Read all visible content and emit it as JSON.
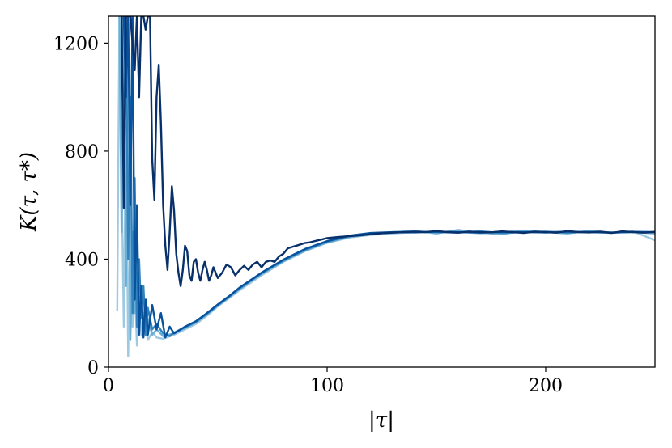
{
  "chart_data": {
    "type": "line",
    "title": "",
    "xlabel": "|τ|",
    "ylabel": "K(τ, τ*)",
    "xlim": [
      0,
      250
    ],
    "ylim": [
      0,
      1300
    ],
    "xticks": [
      0,
      100,
      200
    ],
    "yticks": [
      0,
      400,
      800,
      1200
    ],
    "grid": false,
    "legend": "none",
    "series": [
      {
        "color": "#9ecae1",
        "points": [
          [
            4,
            210
          ],
          [
            5,
            1300
          ],
          [
            6,
            700
          ],
          [
            7,
            150
          ],
          [
            8,
            900
          ],
          [
            9,
            40
          ],
          [
            10,
            600
          ],
          [
            11,
            150
          ],
          [
            12,
            320
          ],
          [
            13,
            80
          ],
          [
            14,
            260
          ],
          [
            15,
            120
          ],
          [
            16,
            200
          ],
          [
            18,
            100
          ],
          [
            20,
            130
          ],
          [
            22,
            110
          ],
          [
            25,
            105
          ],
          [
            30,
            120
          ],
          [
            35,
            140
          ],
          [
            40,
            160
          ],
          [
            45,
            190
          ],
          [
            50,
            225
          ],
          [
            55,
            255
          ],
          [
            60,
            285
          ],
          [
            70,
            340
          ],
          [
            80,
            390
          ],
          [
            90,
            430
          ],
          [
            100,
            460
          ],
          [
            110,
            480
          ],
          [
            120,
            490
          ],
          [
            130,
            495
          ],
          [
            140,
            500
          ],
          [
            150,
            498
          ],
          [
            160,
            502
          ],
          [
            170,
            495
          ],
          [
            180,
            500
          ],
          [
            190,
            505
          ],
          [
            200,
            498
          ],
          [
            210,
            502
          ],
          [
            220,
            500
          ],
          [
            230,
            497
          ],
          [
            240,
            503
          ],
          [
            250,
            470
          ]
        ]
      },
      {
        "color": "#6baed6",
        "points": [
          [
            5,
            1300
          ],
          [
            6,
            500
          ],
          [
            7,
            1300
          ],
          [
            8,
            300
          ],
          [
            9,
            1100
          ],
          [
            10,
            100
          ],
          [
            11,
            500
          ],
          [
            12,
            200
          ],
          [
            13,
            350
          ],
          [
            14,
            150
          ],
          [
            15,
            250
          ],
          [
            16,
            130
          ],
          [
            18,
            180
          ],
          [
            20,
            120
          ],
          [
            22,
            140
          ],
          [
            25,
            115
          ],
          [
            30,
            125
          ],
          [
            35,
            145
          ],
          [
            40,
            165
          ],
          [
            45,
            195
          ],
          [
            50,
            228
          ],
          [
            55,
            258
          ],
          [
            60,
            290
          ],
          [
            70,
            345
          ],
          [
            80,
            392
          ],
          [
            90,
            432
          ],
          [
            100,
            462
          ],
          [
            110,
            482
          ],
          [
            120,
            492
          ],
          [
            130,
            500
          ],
          [
            140,
            505
          ],
          [
            150,
            495
          ],
          [
            160,
            508
          ],
          [
            170,
            498
          ],
          [
            180,
            492
          ],
          [
            190,
            506
          ],
          [
            200,
            500
          ],
          [
            210,
            495
          ],
          [
            220,
            505
          ],
          [
            230,
            498
          ],
          [
            240,
            500
          ],
          [
            250,
            495
          ]
        ]
      },
      {
        "color": "#3182bd",
        "points": [
          [
            6,
            1300
          ],
          [
            7,
            800
          ],
          [
            8,
            1300
          ],
          [
            9,
            400
          ],
          [
            10,
            1000
          ],
          [
            11,
            200
          ],
          [
            12,
            700
          ],
          [
            13,
            150
          ],
          [
            14,
            400
          ],
          [
            15,
            180
          ],
          [
            16,
            300
          ],
          [
            17,
            120
          ],
          [
            18,
            220
          ],
          [
            20,
            140
          ],
          [
            22,
            160
          ],
          [
            25,
            125
          ],
          [
            28,
            115
          ],
          [
            30,
            128
          ],
          [
            35,
            148
          ],
          [
            40,
            168
          ],
          [
            45,
            198
          ],
          [
            50,
            230
          ],
          [
            55,
            260
          ],
          [
            60,
            292
          ],
          [
            70,
            348
          ],
          [
            80,
            395
          ],
          [
            90,
            435
          ],
          [
            100,
            465
          ],
          [
            110,
            485
          ],
          [
            120,
            495
          ],
          [
            130,
            498
          ],
          [
            140,
            502
          ],
          [
            150,
            500
          ],
          [
            160,
            498
          ],
          [
            170,
            503
          ],
          [
            180,
            497
          ],
          [
            190,
            500
          ],
          [
            200,
            502
          ],
          [
            210,
            498
          ],
          [
            220,
            501
          ],
          [
            230,
            499
          ],
          [
            240,
            500
          ],
          [
            250,
            500
          ]
        ]
      },
      {
        "color": "#08519c",
        "points": [
          [
            7,
            1300
          ],
          [
            8,
            1000
          ],
          [
            9,
            1300
          ],
          [
            10,
            600
          ],
          [
            11,
            1300
          ],
          [
            12,
            250
          ],
          [
            13,
            600
          ],
          [
            14,
            120
          ],
          [
            15,
            300
          ],
          [
            16,
            110
          ],
          [
            17,
            250
          ],
          [
            18,
            120
          ],
          [
            20,
            230
          ],
          [
            22,
            140
          ],
          [
            24,
            200
          ],
          [
            26,
            110
          ],
          [
            28,
            150
          ],
          [
            30,
            125
          ],
          [
            35,
            150
          ],
          [
            40,
            170
          ],
          [
            45,
            200
          ],
          [
            50,
            232
          ],
          [
            55,
            262
          ],
          [
            60,
            295
          ],
          [
            70,
            350
          ],
          [
            80,
            398
          ],
          [
            90,
            438
          ],
          [
            100,
            467
          ],
          [
            110,
            487
          ],
          [
            120,
            497
          ],
          [
            130,
            500
          ],
          [
            140,
            499
          ],
          [
            150,
            502
          ],
          [
            160,
            500
          ],
          [
            170,
            498
          ],
          [
            180,
            501
          ],
          [
            190,
            500
          ],
          [
            200,
            499
          ],
          [
            210,
            502
          ],
          [
            220,
            500
          ],
          [
            230,
            498
          ],
          [
            240,
            501
          ],
          [
            250,
            500
          ]
        ]
      },
      {
        "color": "#08306b",
        "points": [
          [
            6,
            1300
          ],
          [
            7,
            590
          ],
          [
            8,
            1300
          ],
          [
            10,
            1300
          ],
          [
            12,
            1100
          ],
          [
            13,
            1300
          ],
          [
            14,
            1000
          ],
          [
            15,
            1300
          ],
          [
            16,
            1300
          ],
          [
            17,
            1250
          ],
          [
            18,
            1300
          ],
          [
            19,
            1300
          ],
          [
            20,
            770
          ],
          [
            21,
            620
          ],
          [
            22,
            1000
          ],
          [
            23,
            1120
          ],
          [
            24,
            900
          ],
          [
            25,
            600
          ],
          [
            26,
            450
          ],
          [
            27,
            360
          ],
          [
            28,
            500
          ],
          [
            29,
            670
          ],
          [
            30,
            580
          ],
          [
            31,
            420
          ],
          [
            32,
            350
          ],
          [
            33,
            300
          ],
          [
            34,
            360
          ],
          [
            35,
            450
          ],
          [
            36,
            430
          ],
          [
            37,
            340
          ],
          [
            38,
            320
          ],
          [
            39,
            390
          ],
          [
            40,
            400
          ],
          [
            41,
            350
          ],
          [
            42,
            320
          ],
          [
            43,
            360
          ],
          [
            44,
            390
          ],
          [
            45,
            360
          ],
          [
            46,
            320
          ],
          [
            47,
            340
          ],
          [
            48,
            370
          ],
          [
            49,
            350
          ],
          [
            50,
            330
          ],
          [
            52,
            350
          ],
          [
            54,
            380
          ],
          [
            56,
            370
          ],
          [
            58,
            340
          ],
          [
            60,
            360
          ],
          [
            62,
            375
          ],
          [
            64,
            360
          ],
          [
            66,
            380
          ],
          [
            68,
            390
          ],
          [
            70,
            370
          ],
          [
            72,
            390
          ],
          [
            74,
            395
          ],
          [
            76,
            390
          ],
          [
            78,
            410
          ],
          [
            80,
            420
          ],
          [
            82,
            440
          ],
          [
            84,
            445
          ],
          [
            86,
            450
          ],
          [
            88,
            455
          ],
          [
            90,
            460
          ],
          [
            92,
            462
          ],
          [
            94,
            466
          ],
          [
            96,
            470
          ],
          [
            98,
            474
          ],
          [
            100,
            478
          ],
          [
            105,
            482
          ],
          [
            110,
            485
          ],
          [
            115,
            488
          ],
          [
            120,
            492
          ],
          [
            125,
            496
          ],
          [
            130,
            498
          ],
          [
            135,
            500
          ],
          [
            140,
            502
          ],
          [
            145,
            500
          ],
          [
            150,
            504
          ],
          [
            155,
            500
          ],
          [
            160,
            498
          ],
          [
            165,
            502
          ],
          [
            170,
            500
          ],
          [
            175,
            499
          ],
          [
            180,
            503
          ],
          [
            185,
            500
          ],
          [
            190,
            497
          ],
          [
            195,
            502
          ],
          [
            200,
            500
          ],
          [
            205,
            498
          ],
          [
            210,
            504
          ],
          [
            215,
            500
          ],
          [
            220,
            499
          ],
          [
            225,
            502
          ],
          [
            230,
            497
          ],
          [
            235,
            503
          ],
          [
            240,
            500
          ],
          [
            245,
            498
          ],
          [
            250,
            501
          ]
        ]
      }
    ]
  }
}
